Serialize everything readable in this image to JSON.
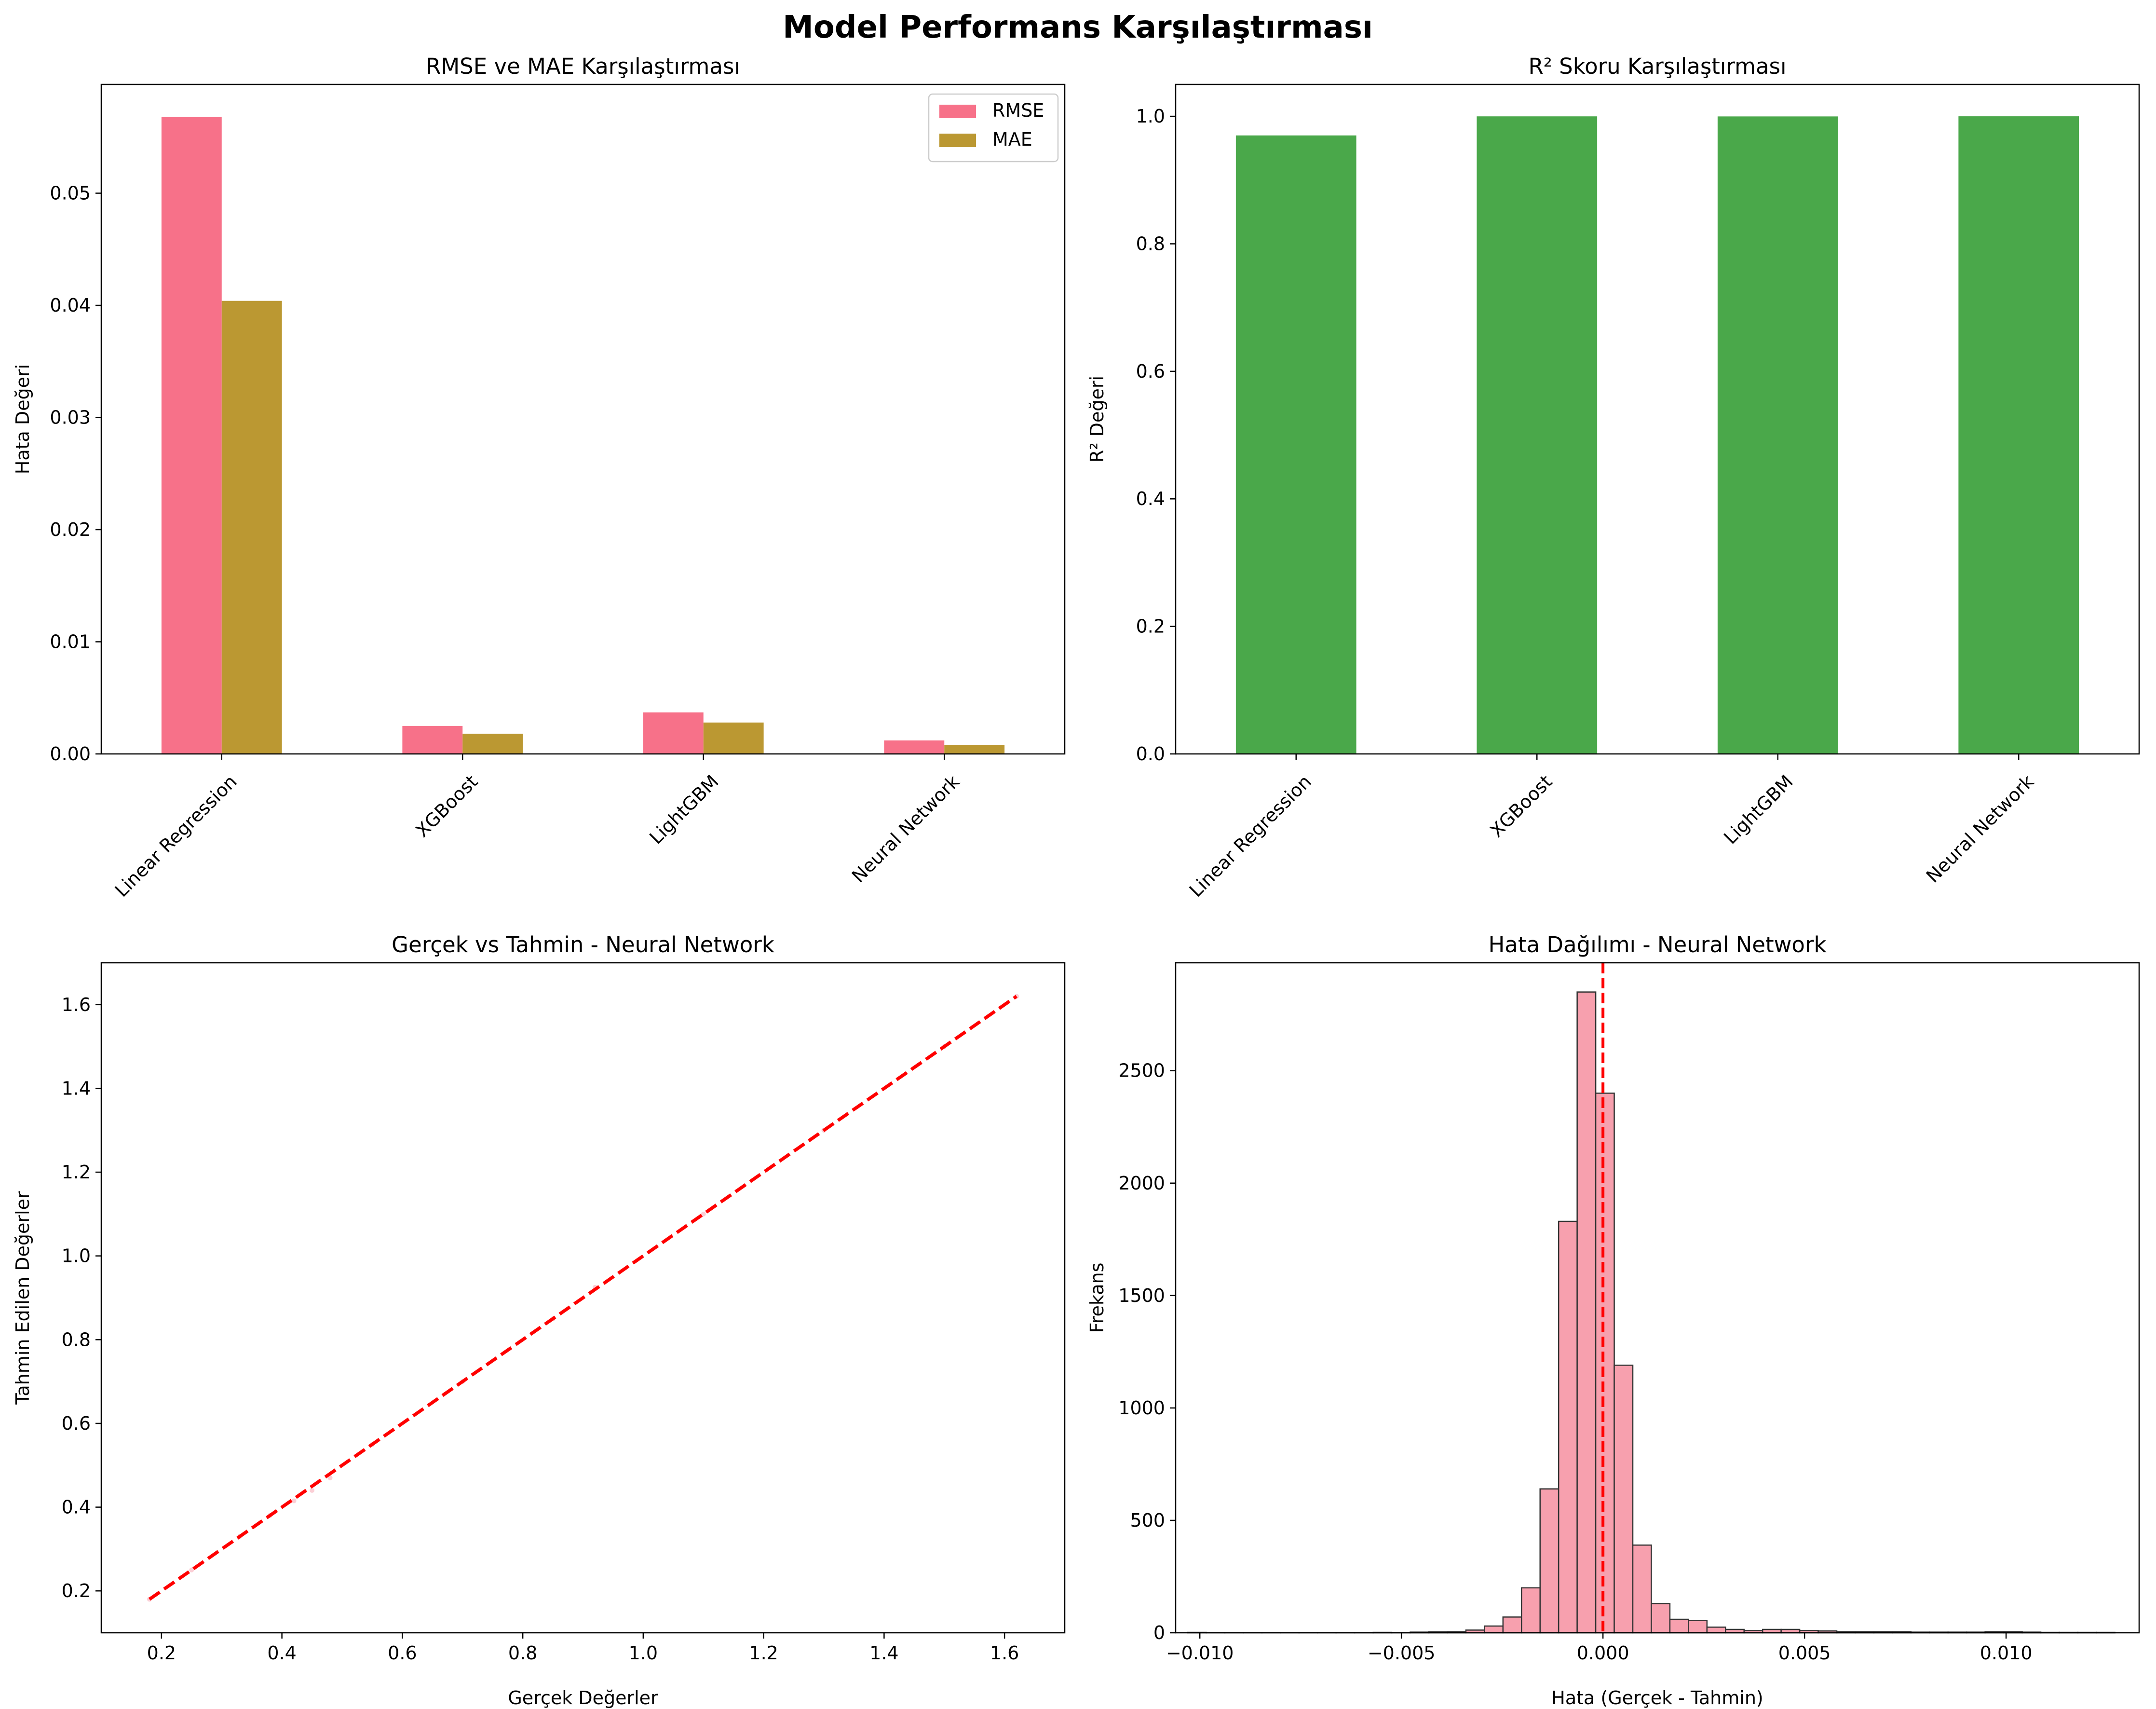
{
  "figure": {
    "suptitle": "Model Performans Karşılaştırması"
  },
  "colors": {
    "rmse": "#f77189",
    "mae": "#bb9832",
    "r2": "#4aa84a",
    "line": "#ff0000",
    "hist": "#f7a0ae",
    "hist_edge": "#333333"
  },
  "chart_data": [
    {
      "id": "p1",
      "type": "bar",
      "title": "RMSE ve MAE Karşılaştırması",
      "xlabel": "",
      "ylabel": "Hata Değeri",
      "categories": [
        "Linear Regression",
        "XGBoost",
        "LightGBM",
        "Neural Network"
      ],
      "series": [
        {
          "name": "RMSE",
          "values": [
            0.0568,
            0.0025,
            0.0037,
            0.0012
          ]
        },
        {
          "name": "MAE",
          "values": [
            0.0404,
            0.0018,
            0.0028,
            0.0008
          ]
        }
      ],
      "ylim": [
        0,
        0.0597
      ],
      "yticks": [
        0.0,
        0.01,
        0.02,
        0.03,
        0.04,
        0.05
      ],
      "ytick_labels": [
        "0.00",
        "0.01",
        "0.02",
        "0.03",
        "0.04",
        "0.05"
      ],
      "legend": "top-right",
      "grid": false
    },
    {
      "id": "p2",
      "type": "bar",
      "title": "R² Skoru Karşılaştırması",
      "xlabel": "",
      "ylabel": "R² Değeri",
      "categories": [
        "Linear Regression",
        "XGBoost",
        "LightGBM",
        "Neural Network"
      ],
      "values": [
        0.97,
        0.9999,
        0.9998,
        1.0
      ],
      "ylim": [
        0,
        1.05
      ],
      "yticks": [
        0.0,
        0.2,
        0.4,
        0.6,
        0.8,
        1.0
      ],
      "ytick_labels": [
        "0.0",
        "0.2",
        "0.4",
        "0.6",
        "0.8",
        "1.0"
      ],
      "grid": false
    },
    {
      "id": "p3",
      "type": "scatter",
      "title": "Gerçek vs Tahmin - Neural Network",
      "xlabel": "Gerçek Değerler",
      "ylabel": "Tahmin Edilen Değerler",
      "xlim": [
        0.1,
        1.7
      ],
      "ylim": [
        0.1,
        1.7
      ],
      "xticks": [
        0.2,
        0.4,
        0.6,
        0.8,
        1.0,
        1.2,
        1.4,
        1.6
      ],
      "xtick_labels": [
        "0.2",
        "0.4",
        "0.6",
        "0.8",
        "1.0",
        "1.2",
        "1.4",
        "1.6"
      ],
      "yticks": [
        0.2,
        0.4,
        0.6,
        0.8,
        1.0,
        1.2,
        1.4,
        1.6
      ],
      "ytick_labels": [
        "0.2",
        "0.4",
        "0.6",
        "0.8",
        "1.0",
        "1.2",
        "1.4",
        "1.6"
      ],
      "reference_line": {
        "x": [
          0.18,
          1.62
        ],
        "y": [
          0.18,
          1.62
        ],
        "style": "dashed"
      },
      "points": [
        [
          0.18,
          0.18
        ],
        [
          0.25,
          0.25
        ],
        [
          0.33,
          0.33
        ],
        [
          0.38,
          0.38
        ],
        [
          0.42,
          0.415
        ],
        [
          0.45,
          0.44
        ],
        [
          0.48,
          0.47
        ],
        [
          0.55,
          0.55
        ],
        [
          0.7,
          0.7
        ],
        [
          0.85,
          0.85
        ],
        [
          0.92,
          0.925
        ],
        [
          1.1,
          1.1
        ],
        [
          1.3,
          1.3
        ],
        [
          1.5,
          1.5
        ],
        [
          1.62,
          1.62
        ]
      ],
      "grid": false
    },
    {
      "id": "p4",
      "type": "histogram",
      "title": "Hata Dağılımı - Neural Network",
      "xlabel": "Hata (Gerçek - Tahmin)",
      "ylabel": "Frekans",
      "xlim": [
        -0.0106,
        0.0133
      ],
      "ylim": [
        0,
        2980
      ],
      "xticks": [
        -0.01,
        -0.005,
        0.0,
        0.005,
        0.01
      ],
      "xtick_labels": [
        "−0.010",
        "−0.005",
        "0.000",
        "0.005",
        "0.010"
      ],
      "yticks": [
        0,
        500,
        1000,
        1500,
        2000,
        2500
      ],
      "ytick_labels": [
        "0",
        "500",
        "1000",
        "1500",
        "2000",
        "2500"
      ],
      "bin_start": -0.0103,
      "bin_width": 0.00046,
      "counts": [
        2,
        1,
        1,
        1,
        1,
        1,
        1,
        1,
        1,
        1,
        2,
        1,
        3,
        4,
        5,
        12,
        30,
        70,
        200,
        640,
        1830,
        2850,
        2400,
        1190,
        390,
        130,
        60,
        55,
        25,
        15,
        10,
        15,
        15,
        10,
        8,
        5,
        5,
        5,
        5,
        3,
        3,
        3,
        3,
        5,
        5,
        3,
        2,
        2,
        2,
        2
      ],
      "vline": {
        "x": 0.0,
        "style": "dashed"
      },
      "grid": false
    }
  ]
}
